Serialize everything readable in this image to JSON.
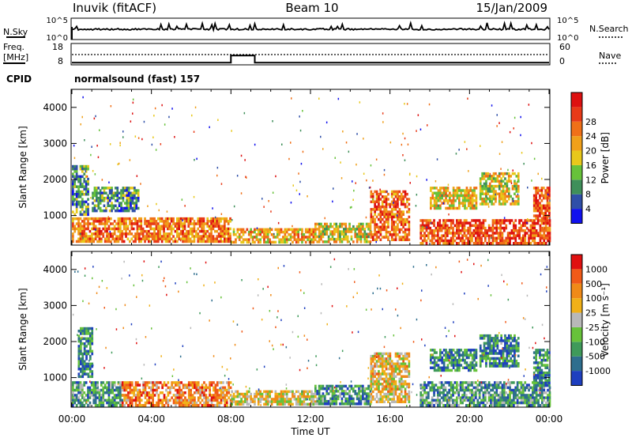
{
  "header": {
    "station": "Inuvik (fitACF)",
    "beam": "Beam 10",
    "date": "15/Jan/2009"
  },
  "noise_panel": {
    "left_label": "N.Sky",
    "right_label": "N.Search",
    "left_ticks": [
      "10^5",
      "10^0"
    ],
    "right_ticks": [
      "10^5",
      "10^0"
    ]
  },
  "freq_panel": {
    "left_label_1": "Freq.",
    "left_label_2": "[MHz]",
    "right_label": "Nave",
    "left_ticks": [
      "18",
      "8"
    ],
    "right_ticks": [
      "60",
      "0"
    ],
    "freq_steps": [
      {
        "t0": 0,
        "t1": 8.0,
        "value": 9.0
      },
      {
        "t0": 8.0,
        "t1": 9.2,
        "value": 14.0
      },
      {
        "t0": 9.2,
        "t1": 24,
        "value": 9.0
      }
    ],
    "nave_level": 23
  },
  "cpid": {
    "label": "CPID",
    "value": "normalsound (fast) 157"
  },
  "x_axis": {
    "label": "Time UT",
    "ticks": [
      "00:00",
      "04:00",
      "08:00",
      "12:00",
      "16:00",
      "20:00",
      "00:00"
    ]
  },
  "chart_data": [
    {
      "type": "heatmap",
      "name": "power",
      "ylabel": "Slant Range [km]",
      "xlim": [
        0,
        24
      ],
      "ylim": [
        180,
        4500
      ],
      "y_ticks": [
        "1000",
        "2000",
        "3000",
        "4000"
      ],
      "colorbar_label": "Power [dB]",
      "colorbar_ticks": [
        "4",
        "8",
        "12",
        "16",
        "20",
        "24",
        "28"
      ],
      "colors": [
        "#1111ee",
        "#2f4fa8",
        "#3f8f5a",
        "#67c23a",
        "#e8c81a",
        "#f0a01a",
        "#f07018",
        "#e83a18",
        "#dd1010"
      ],
      "regions": [
        {
          "t0": 0.0,
          "t1": 8.0,
          "r0": 250,
          "r1": 950,
          "level": 0.7
        },
        {
          "t0": 8.0,
          "t1": 12.2,
          "r0": 250,
          "r1": 650,
          "level": 0.6
        },
        {
          "t0": 12.2,
          "t1": 15.0,
          "r0": 250,
          "r1": 800,
          "level": 0.5
        },
        {
          "t0": 15.0,
          "t1": 17.0,
          "r0": 300,
          "r1": 1700,
          "level": 0.75
        },
        {
          "t0": 17.5,
          "t1": 24.0,
          "r0": 250,
          "r1": 900,
          "level": 0.8
        },
        {
          "t0": 18.0,
          "t1": 20.3,
          "r0": 1200,
          "r1": 1800,
          "level": 0.55
        },
        {
          "t0": 1.0,
          "t1": 3.3,
          "r0": 1100,
          "r1": 1800,
          "level": 0.3
        },
        {
          "t0": 20.5,
          "t1": 22.5,
          "r0": 1300,
          "r1": 2200,
          "level": 0.5
        },
        {
          "t0": 23.2,
          "t1": 24.0,
          "r0": 800,
          "r1": 1800,
          "level": 0.8
        },
        {
          "t0": 0.0,
          "t1": 0.8,
          "r0": 1000,
          "r1": 2400,
          "level": 0.3
        }
      ]
    },
    {
      "type": "heatmap",
      "name": "velocity",
      "ylabel": "Slant Range [km]",
      "xlim": [
        0,
        24
      ],
      "ylim": [
        180,
        4500
      ],
      "y_ticks": [
        "1000",
        "2000",
        "3000",
        "4000"
      ],
      "colorbar_label": "Velocity [m s⁻¹]",
      "colorbar_ticks": [
        "1000",
        "500",
        "100",
        "25",
        "-25",
        "-100",
        "-500",
        "-1000"
      ],
      "colors": [
        "#1e3fbf",
        "#2e6e8e",
        "#3f9a5a",
        "#67c23a",
        "#b8b8b8",
        "#f0b018",
        "#f08a18",
        "#f05a18",
        "#e01010"
      ],
      "regions": [
        {
          "t0": 0.0,
          "t1": 2.5,
          "r0": 250,
          "r1": 900,
          "level": 0.3
        },
        {
          "t0": 2.5,
          "t1": 8.0,
          "r0": 250,
          "r1": 900,
          "level": 0.72
        },
        {
          "t0": 8.0,
          "t1": 12.2,
          "r0": 250,
          "r1": 650,
          "level": 0.55
        },
        {
          "t0": 12.2,
          "t1": 15.0,
          "r0": 250,
          "r1": 800,
          "level": 0.25
        },
        {
          "t0": 15.0,
          "t1": 17.0,
          "r0": 300,
          "r1": 1700,
          "level": 0.6
        },
        {
          "t0": 17.5,
          "t1": 24.0,
          "r0": 250,
          "r1": 900,
          "level": 0.28
        },
        {
          "t0": 18.0,
          "t1": 20.3,
          "r0": 1200,
          "r1": 1800,
          "level": 0.22
        },
        {
          "t0": 0.3,
          "t1": 1.0,
          "r0": 1000,
          "r1": 2400,
          "level": 0.22
        },
        {
          "t0": 20.5,
          "t1": 22.5,
          "r0": 1300,
          "r1": 2200,
          "level": 0.22
        },
        {
          "t0": 23.2,
          "t1": 24.0,
          "r0": 800,
          "r1": 1800,
          "level": 0.22
        }
      ]
    }
  ]
}
